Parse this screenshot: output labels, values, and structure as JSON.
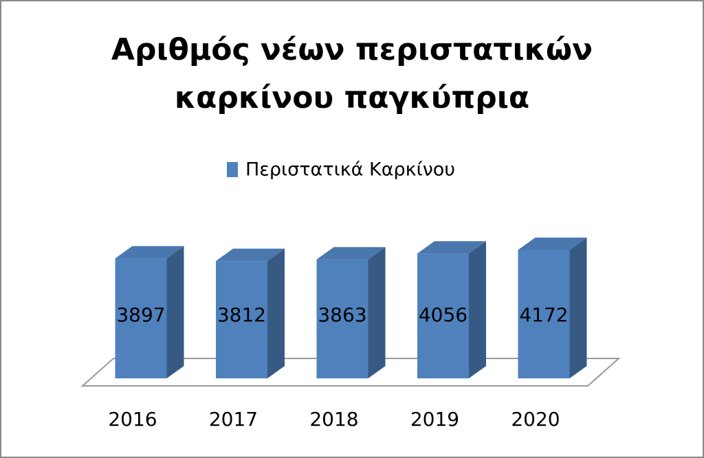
{
  "chart_data": {
    "type": "bar3d",
    "title": "Αριθμός νέων περιστατικών καρκίνου παγκύπρια",
    "categories": [
      "2016",
      "2017",
      "2018",
      "2019",
      "2020"
    ],
    "series": [
      {
        "name": "Περιστατικά Καρκίνου",
        "color": "#4f81bd",
        "values": [
          3897,
          3812,
          3863,
          4056,
          4172
        ]
      }
    ]
  }
}
